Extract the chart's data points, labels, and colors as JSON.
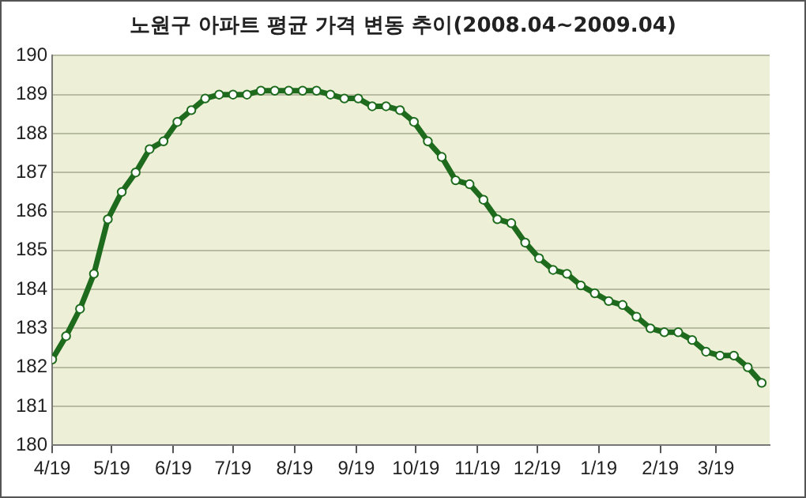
{
  "chart_data": {
    "type": "line",
    "title": "노원구 아파트 평균 가격 변동 추이(2008.04~2009.04)",
    "x": [
      "2008-04-19",
      "2008-04-26",
      "2008-05-03",
      "2008-05-10",
      "2008-05-17",
      "2008-05-24",
      "2008-05-31",
      "2008-06-07",
      "2008-06-14",
      "2008-06-21",
      "2008-06-28",
      "2008-07-05",
      "2008-07-12",
      "2008-07-19",
      "2008-07-26",
      "2008-08-02",
      "2008-08-09",
      "2008-08-16",
      "2008-08-23",
      "2008-08-30",
      "2008-09-06",
      "2008-09-13",
      "2008-09-20",
      "2008-09-27",
      "2008-10-04",
      "2008-10-11",
      "2008-10-18",
      "2008-10-25",
      "2008-11-01",
      "2008-11-08",
      "2008-11-15",
      "2008-11-22",
      "2008-11-29",
      "2008-12-06",
      "2008-12-13",
      "2008-12-20",
      "2008-12-27",
      "2009-01-03",
      "2009-01-10",
      "2009-01-17",
      "2009-01-24",
      "2009-01-31",
      "2009-02-07",
      "2009-02-14",
      "2009-02-21",
      "2009-02-28",
      "2009-03-07",
      "2009-03-14",
      "2009-03-21",
      "2009-03-28",
      "2009-04-04",
      "2009-04-11"
    ],
    "series": [
      {
        "color": "#1e6b1e",
        "values": [
          182.2,
          182.8,
          183.5,
          184.4,
          185.8,
          186.5,
          187.0,
          187.6,
          187.8,
          188.3,
          188.6,
          188.9,
          189.0,
          189.0,
          189.0,
          189.1,
          189.1,
          189.1,
          189.1,
          189.1,
          189.0,
          188.9,
          188.9,
          188.7,
          188.7,
          188.6,
          188.3,
          187.8,
          187.4,
          186.8,
          186.7,
          186.3,
          185.8,
          185.7,
          185.2,
          184.8,
          184.5,
          184.4,
          184.1,
          183.9,
          183.7,
          183.6,
          183.3,
          183.0,
          182.9,
          182.9,
          182.7,
          182.4,
          182.3,
          182.3,
          182.0,
          181.6
        ]
      }
    ],
    "xlim": [
      "2008-04-19",
      "2009-04-15"
    ],
    "xticks": [
      {
        "value": "2008-04-19",
        "label": "4/19"
      },
      {
        "value": "2008-05-19",
        "label": "5/19"
      },
      {
        "value": "2008-06-19",
        "label": "6/19"
      },
      {
        "value": "2008-07-19",
        "label": "7/19"
      },
      {
        "value": "2008-08-19",
        "label": "8/19"
      },
      {
        "value": "2008-09-19",
        "label": "9/19"
      },
      {
        "value": "2008-10-19",
        "label": "10/19"
      },
      {
        "value": "2008-11-19",
        "label": "11/19"
      },
      {
        "value": "2008-12-19",
        "label": "12/19"
      },
      {
        "value": "2009-01-19",
        "label": "1/19"
      },
      {
        "value": "2009-02-19",
        "label": "2/19"
      },
      {
        "value": "2009-03-19",
        "label": "3/19"
      }
    ],
    "ylim": [
      180,
      190
    ],
    "yticks": [
      180,
      181,
      182,
      183,
      184,
      185,
      186,
      187,
      188,
      189,
      190
    ],
    "grid": "y",
    "marker": "circle",
    "line_style": "solid",
    "legend": false
  }
}
